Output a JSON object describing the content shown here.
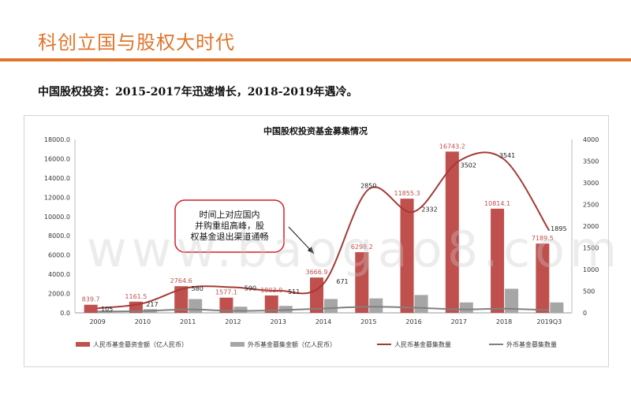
{
  "header": {
    "title": "科创立国与股权大时代",
    "subtitle": "中国股权投资：2015-2017年迅速增长，2018-2019年遇冷。"
  },
  "watermark": "www.baogao8.com",
  "colors": {
    "accent": "#e0742a",
    "rmb": "#c0504d",
    "foreign": "#a6a6a6",
    "rmb_line": "#a53a35",
    "foreign_line": "#808080"
  },
  "chart_data": {
    "type": "bar+line",
    "title": "中国股权投资基金募集情况",
    "categories": [
      "2009",
      "2010",
      "2011",
      "2012",
      "2013",
      "2014",
      "2015",
      "2016",
      "2017",
      "2018",
      "2019Q3"
    ],
    "y_left": {
      "ylim": [
        0,
        18000
      ],
      "ticks": [
        "0.0",
        "2000.0",
        "4000.0",
        "6000.0",
        "8000.0",
        "10000.0",
        "12000.0",
        "14000.0",
        "16000.0",
        "18000.0"
      ]
    },
    "y_right": {
      "ylim": [
        0,
        4000
      ],
      "ticks": [
        "0",
        "500",
        "1000",
        "1500",
        "2000",
        "2500",
        "3000",
        "3500",
        "4000"
      ]
    },
    "series": [
      {
        "name": "人民币基金募资金额（亿人民币）",
        "kind": "bar",
        "axis": "left",
        "values": [
          839.7,
          1161.5,
          2764.6,
          1577.1,
          1803.0,
          3666.9,
          6298.2,
          11855.3,
          16743.2,
          10814.1,
          7189.5
        ],
        "labels": [
          "839.7",
          "1161.5",
          "2764.6",
          "1577.1",
          "1803.0",
          "3666.9",
          "6298.2",
          "11855.3",
          "16743.2",
          "10814.1",
          "7189.5"
        ]
      },
      {
        "name": "外币基金募集金额（亿人民币）",
        "kind": "bar",
        "axis": "left",
        "values": [
          200,
          380,
          1430,
          640,
          720,
          1440,
          1500,
          1850,
          1080,
          2500,
          1080
        ]
      },
      {
        "name": "人民币基金募集数量",
        "kind": "line",
        "axis": "right",
        "values": [
          105,
          217,
          580,
          590,
          511,
          671,
          2850,
          2332,
          3502,
          3541,
          1895
        ],
        "labels": [
          "105",
          "217",
          "580",
          "590",
          "511",
          "671",
          "2850",
          "2332",
          "3502",
          "3541",
          "1895"
        ]
      },
      {
        "name": "外币基金募集数量",
        "kind": "line",
        "axis": "right",
        "values": [
          30,
          40,
          80,
          45,
          60,
          100,
          140,
          120,
          80,
          95,
          60
        ]
      }
    ],
    "annotation": "时间上对应国内并购重组高峰，股权基金退出渠道通畅"
  }
}
